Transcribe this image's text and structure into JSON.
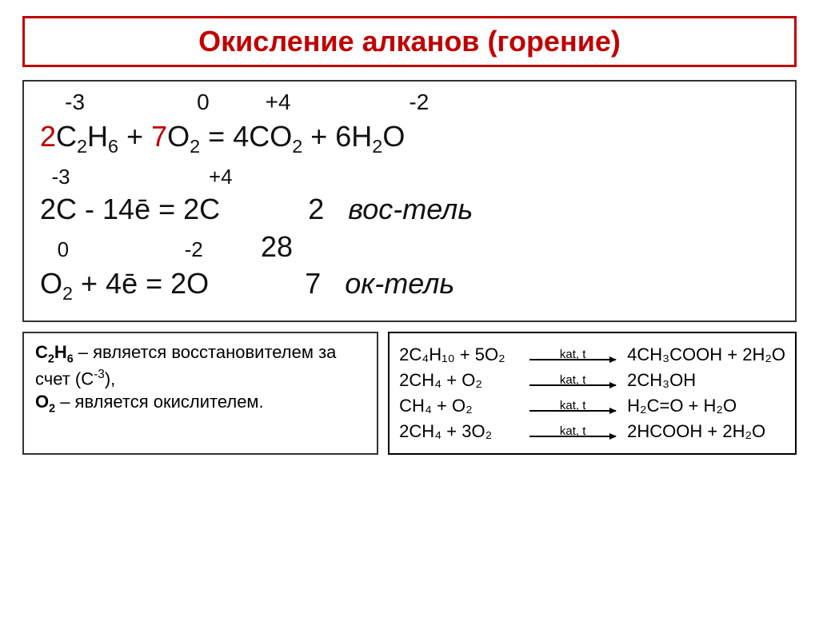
{
  "title": "Окисление алканов (горение)",
  "colors": {
    "accent": "#c00000",
    "border": "#333333",
    "text": "#111111",
    "bg": "#ffffff"
  },
  "equation": {
    "ox_reactant1": "-3",
    "ox_reactant2": "0",
    "ox_product1": "+4",
    "ox_product2": "-2",
    "coef1": "2",
    "sp1_a": "C",
    "sp1_a_sub": "2",
    "sp1_b": "H",
    "sp1_b_sub": "6",
    "plus1": " + ",
    "coef2": "7",
    "sp2_a": "O",
    "sp2_a_sub": "2",
    "eq": " = ",
    "coef3": "4",
    "sp3_a": "CO",
    "sp3_a_sub": "2",
    "plus2": " + ",
    "coef4": "6",
    "sp4_a": "H",
    "sp4_a_sub": "2",
    "sp4_b": "O"
  },
  "half1": {
    "ox_left": "-3",
    "ox_right": "+4",
    "lhs_coef": "2",
    "lhs_sym": "C",
    "e_part": " - 14ē = ",
    "rhs_coef": "2",
    "rhs_sym": "C",
    "mult": "2",
    "role": "вос-тель"
  },
  "lcm": "28",
  "half2": {
    "ox_left": "0",
    "ox_right": "-2",
    "lhs_sym": "O",
    "lhs_sub": "2",
    "e_part": " + 4ē = ",
    "rhs_coef": "2",
    "rhs_sym": "O",
    "mult": "7",
    "role": "ок-тель"
  },
  "note": {
    "f1": "C",
    "f1s1": "2",
    "f1b": "H",
    "f1s2": "6",
    "t1": " – является восстановителем за счет (С",
    "sup": "-3",
    "t1b": "),",
    "f2": "O",
    "f2s": "2",
    "t2": " – является окислителем."
  },
  "reactions": [
    {
      "lhs": "2C₄H₁₀ + 5O₂",
      "cond": "kat, t",
      "rhs": "4CH₃COOH + 2H₂O"
    },
    {
      "lhs": "2CH₄ + O₂",
      "cond": "kat, t",
      "rhs": "2CH₃OH"
    },
    {
      "lhs": "CH₄ + O₂",
      "cond": "kat, t",
      "rhs": "H₂C=O + H₂O"
    },
    {
      "lhs": "2CH₄ + 3O₂",
      "cond": "kat, t",
      "rhs": "2HCOOH + 2H₂O"
    }
  ]
}
